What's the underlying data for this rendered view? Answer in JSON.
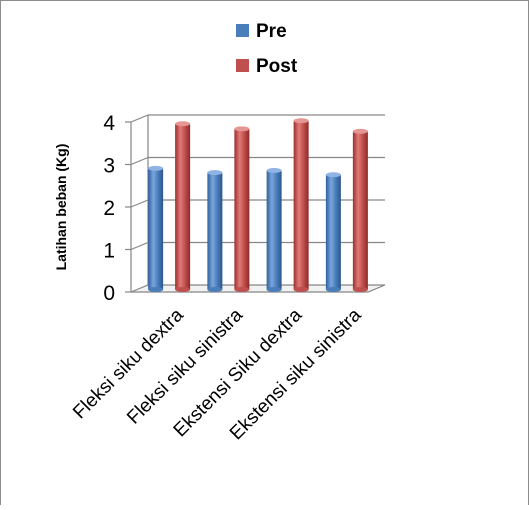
{
  "chart_data": {
    "type": "bar",
    "title": "",
    "xlabel": "",
    "ylabel": "Latihan beban (Kg)",
    "ylim": [
      0,
      4
    ],
    "y_ticks": [
      "0",
      "1",
      "2",
      "3",
      "4"
    ],
    "grid": true,
    "legend_position": "top",
    "categories": [
      "Fleksi siku dextra",
      "Fleksi siku sinistra",
      "Ekstensi Siku dextra",
      "Ekstensi siku sinistra"
    ],
    "series": [
      {
        "name": "Pre",
        "color": "#4a7ebb",
        "values": [
          2.85,
          2.75,
          2.8,
          2.7
        ]
      },
      {
        "name": "Post",
        "color": "#c0504d",
        "values": [
          3.9,
          3.78,
          3.97,
          3.72
        ]
      }
    ]
  }
}
